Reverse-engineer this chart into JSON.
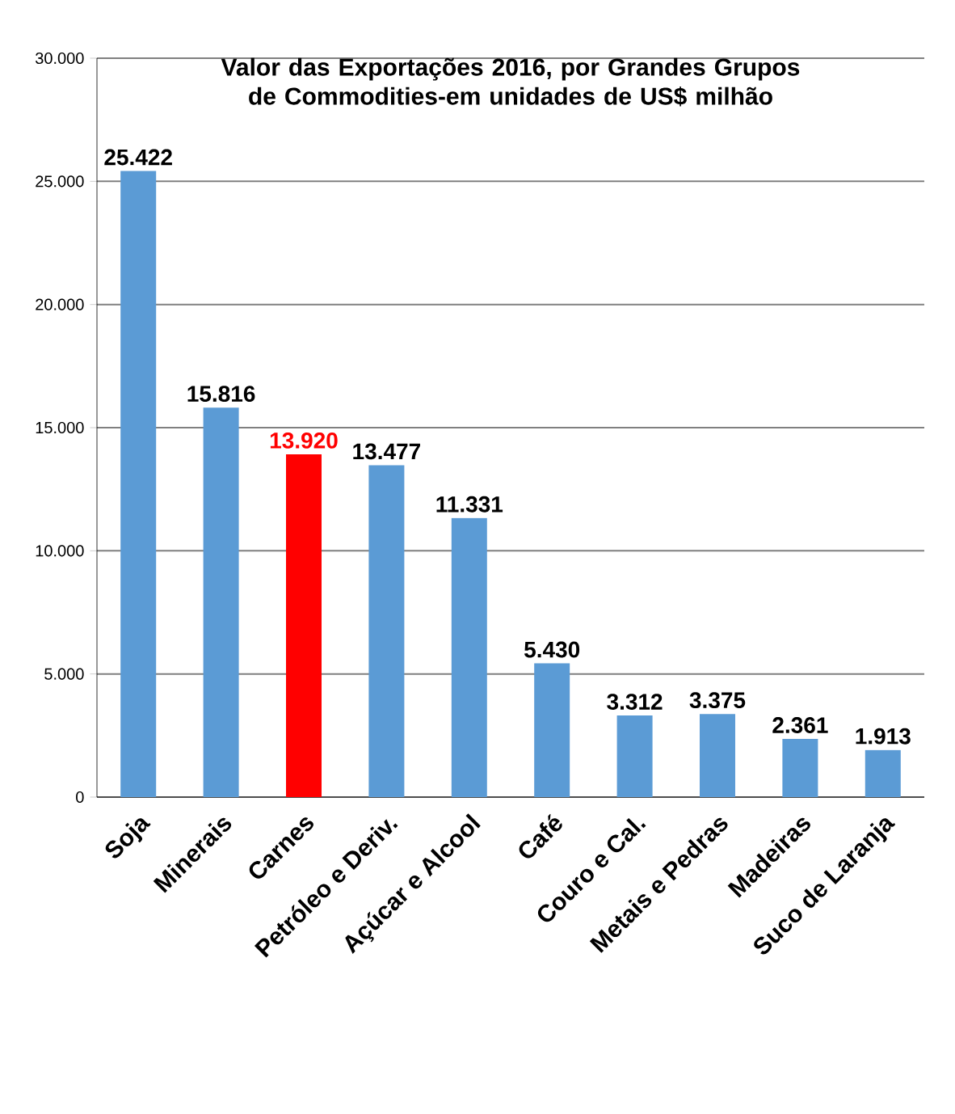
{
  "chart_data": {
    "type": "bar",
    "title": "Valor das Exportações 2016, por Grandes Grupos de Commodities-em unidades de US$ milhão",
    "categories": [
      "Soja",
      "Minerais",
      "Carnes",
      "Petróleo e Deriv.",
      "Açúcar e Alcool",
      "Café",
      "Couro e Cal.",
      "Metais e Pedras",
      "Madeiras",
      "Suco de Laranja"
    ],
    "values": [
      25422,
      15816,
      13920,
      13477,
      11331,
      5430,
      3312,
      3375,
      2361,
      1913
    ],
    "value_labels": [
      "25.422",
      "15.816",
      "13.920",
      "13.477",
      "11.331",
      "5.430",
      "3.312",
      "3.375",
      "2.361",
      "1.913"
    ],
    "colors": [
      "#5b9bd5",
      "#5b9bd5",
      "#ff0000",
      "#5b9bd5",
      "#5b9bd5",
      "#5b9bd5",
      "#5b9bd5",
      "#5b9bd5",
      "#5b9bd5",
      "#5b9bd5"
    ],
    "ylim": [
      0,
      30000
    ],
    "yticks": [
      0,
      {
        "value": 5000,
        "label": "5.000"
      },
      {
        "value": 10000,
        "label": "10.000"
      },
      {
        "value": 15000,
        "label": "15.000"
      },
      {
        "value": 20000,
        "label": "20.000"
      },
      {
        "value": 25000,
        "label": "25.000"
      },
      {
        "value": 30000,
        "label": "30.000"
      }
    ],
    "grid": "y"
  }
}
